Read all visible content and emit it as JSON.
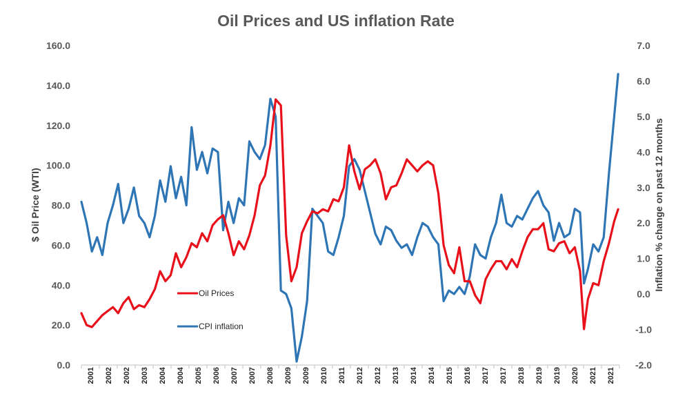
{
  "chart_data": {
    "type": "line",
    "title": "Oil Prices and US inflation Rate",
    "ylabel_left": "$ Oil Price (WTI)",
    "ylabel_right": "Inflation % change on past 12 months",
    "xlabel": "",
    "ylim_left": [
      0,
      160
    ],
    "ylim_right": [
      -2,
      7
    ],
    "yticks_left": [
      "0.0",
      "20.0",
      "40.0",
      "60.0",
      "80.0",
      "100.0",
      "120.0",
      "140.0",
      "160.0"
    ],
    "yticks_right": [
      "-2.0",
      "-1.0",
      "0.0",
      "1.0",
      "2.0",
      "3.0",
      "4.0",
      "5.0",
      "6.0",
      "7.0"
    ],
    "xlim": [
      2001,
      2021.5
    ],
    "xticks": [
      "2001",
      "2002",
      "2002",
      "2003",
      "2004",
      "2004",
      "2005",
      "2006",
      "2007",
      "2007",
      "2008",
      "2009",
      "2009",
      "2010",
      "2011",
      "2012",
      "2012",
      "2013",
      "2014",
      "2014",
      "2015",
      "2016",
      "2017",
      "2017",
      "2018",
      "2019",
      "2019",
      "2020",
      "2021",
      "2021"
    ],
    "colors": {
      "oil": "#e8101a",
      "cpi": "#2e75b6",
      "axis": "#bfbfbf"
    },
    "series": [
      {
        "name": "Oil Prices",
        "axis": "left",
        "x": [
          2001.0,
          2001.2,
          2001.4,
          2001.6,
          2001.8,
          2002.0,
          2002.2,
          2002.4,
          2002.6,
          2002.8,
          2003.0,
          2003.2,
          2003.4,
          2003.6,
          2003.8,
          2004.0,
          2004.2,
          2004.4,
          2004.6,
          2004.8,
          2005.0,
          2005.2,
          2005.4,
          2005.6,
          2005.8,
          2006.0,
          2006.2,
          2006.4,
          2006.6,
          2006.8,
          2007.0,
          2007.2,
          2007.4,
          2007.6,
          2007.8,
          2008.0,
          2008.2,
          2008.4,
          2008.6,
          2008.8,
          2009.0,
          2009.2,
          2009.4,
          2009.6,
          2009.8,
          2010.0,
          2010.2,
          2010.4,
          2010.6,
          2010.8,
          2011.0,
          2011.2,
          2011.4,
          2011.6,
          2011.8,
          2012.0,
          2012.2,
          2012.4,
          2012.6,
          2012.8,
          2013.0,
          2013.2,
          2013.4,
          2013.6,
          2013.8,
          2014.0,
          2014.2,
          2014.4,
          2014.6,
          2014.8,
          2015.0,
          2015.2,
          2015.4,
          2015.6,
          2015.8,
          2016.0,
          2016.2,
          2016.4,
          2016.6,
          2016.8,
          2017.0,
          2017.2,
          2017.4,
          2017.6,
          2017.8,
          2018.0,
          2018.2,
          2018.4,
          2018.6,
          2018.8,
          2019.0,
          2019.2,
          2019.4,
          2019.6,
          2019.8,
          2020.0,
          2020.15,
          2020.3,
          2020.5,
          2020.7,
          2020.9,
          2021.1,
          2021.3,
          2021.45
        ],
        "values": [
          26,
          20,
          19,
          22,
          25,
          27,
          29,
          26,
          31,
          34,
          28,
          30,
          29,
          33,
          38,
          47,
          42,
          45,
          56,
          49,
          54,
          61,
          59,
          66,
          62,
          70,
          73,
          75,
          66,
          55,
          62,
          58,
          65,
          75,
          90,
          95,
          110,
          133,
          130,
          65,
          42,
          49,
          66,
          72,
          77,
          76,
          78,
          77,
          83,
          82,
          89,
          110,
          97,
          88,
          98,
          100,
          103,
          96,
          83,
          89,
          90,
          96,
          103,
          100,
          97,
          100,
          102,
          100,
          86,
          60,
          50,
          46,
          59,
          42,
          42,
          35,
          31,
          43,
          48,
          52,
          52,
          48,
          53,
          49,
          57,
          64,
          68,
          68,
          71,
          58,
          57,
          61,
          62,
          56,
          59,
          47,
          18,
          33,
          41,
          40,
          52,
          61,
          72,
          78
        ]
      },
      {
        "name": "CPI inflation",
        "axis": "right",
        "x": [
          2001.0,
          2001.2,
          2001.4,
          2001.6,
          2001.8,
          2002.0,
          2002.2,
          2002.4,
          2002.6,
          2002.8,
          2003.0,
          2003.2,
          2003.4,
          2003.6,
          2003.8,
          2004.0,
          2004.2,
          2004.4,
          2004.6,
          2004.8,
          2005.0,
          2005.2,
          2005.4,
          2005.6,
          2005.8,
          2006.0,
          2006.2,
          2006.4,
          2006.6,
          2006.8,
          2007.0,
          2007.2,
          2007.4,
          2007.6,
          2007.8,
          2008.0,
          2008.2,
          2008.4,
          2008.6,
          2008.8,
          2009.0,
          2009.2,
          2009.4,
          2009.6,
          2009.8,
          2010.0,
          2010.2,
          2010.4,
          2010.6,
          2010.8,
          2011.0,
          2011.2,
          2011.4,
          2011.6,
          2011.8,
          2012.0,
          2012.2,
          2012.4,
          2012.6,
          2012.8,
          2013.0,
          2013.2,
          2013.4,
          2013.6,
          2013.8,
          2014.0,
          2014.2,
          2014.4,
          2014.6,
          2014.8,
          2015.0,
          2015.2,
          2015.4,
          2015.6,
          2015.8,
          2016.0,
          2016.2,
          2016.4,
          2016.6,
          2016.8,
          2017.0,
          2017.2,
          2017.4,
          2017.6,
          2017.8,
          2018.0,
          2018.2,
          2018.4,
          2018.6,
          2018.8,
          2019.0,
          2019.2,
          2019.4,
          2019.6,
          2019.8,
          2020.0,
          2020.15,
          2020.3,
          2020.5,
          2020.7,
          2020.9,
          2021.1,
          2021.3,
          2021.45
        ],
        "values": [
          2.6,
          2.0,
          1.2,
          1.6,
          1.1,
          2.0,
          2.5,
          3.1,
          2.0,
          2.4,
          3.0,
          2.2,
          2.0,
          1.6,
          2.2,
          3.2,
          2.6,
          3.6,
          2.7,
          3.3,
          2.5,
          4.7,
          3.5,
          4.0,
          3.4,
          4.1,
          4.0,
          1.8,
          2.6,
          2.0,
          2.7,
          2.5,
          4.3,
          4.0,
          3.8,
          4.2,
          5.5,
          5.0,
          0.1,
          0.0,
          -0.4,
          -1.9,
          -1.2,
          -0.2,
          2.4,
          2.2,
          2.0,
          1.2,
          1.1,
          1.6,
          2.2,
          3.6,
          3.8,
          3.5,
          2.9,
          2.3,
          1.7,
          1.4,
          1.9,
          1.8,
          1.5,
          1.3,
          1.4,
          1.1,
          1.6,
          2.0,
          1.9,
          1.6,
          1.4,
          -0.2,
          0.1,
          0.0,
          0.2,
          0.0,
          0.5,
          1.4,
          1.1,
          1.0,
          1.6,
          2.0,
          2.8,
          2.0,
          1.9,
          2.2,
          2.1,
          2.4,
          2.7,
          2.9,
          2.5,
          2.3,
          1.5,
          2.0,
          1.6,
          1.7,
          2.4,
          2.3,
          0.3,
          0.7,
          1.4,
          1.2,
          1.6,
          3.4,
          5.0,
          6.2
        ]
      }
    ],
    "legend": [
      {
        "label": "Oil Prices",
        "series": 0
      },
      {
        "label": "CPI inflation",
        "series": 1
      }
    ]
  }
}
